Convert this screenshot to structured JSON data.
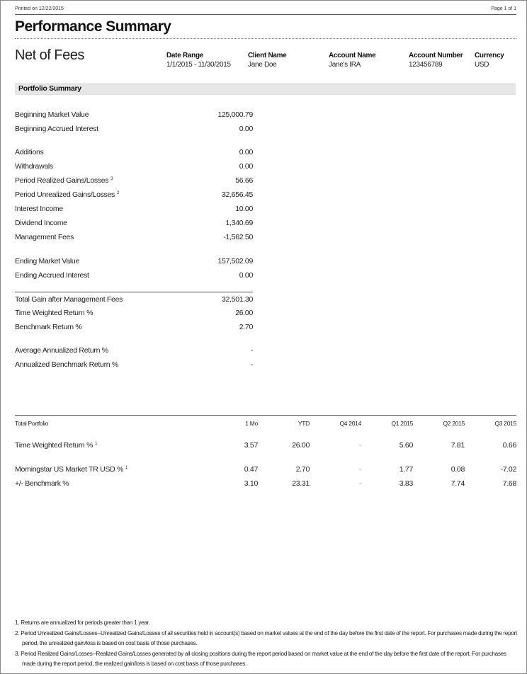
{
  "header": {
    "printed": "Printed on 12/22/2015",
    "page": "Page 1 of 1",
    "title": "Performance Summary",
    "subtitle": "Net of Fees"
  },
  "meta": [
    {
      "label": "Date Range",
      "value": "1/1/2015 - 11/30/2015"
    },
    {
      "label": "Client Name",
      "value": "Jane Doe"
    },
    {
      "label": "Account Name",
      "value": "Jane's IRA"
    },
    {
      "label": "Account Number",
      "value": "123456789"
    },
    {
      "label": "Currency",
      "value": "USD"
    }
  ],
  "section_title": "Portfolio Summary",
  "summary": [
    {
      "label": "Beginning Market Value",
      "value": "125,000.79"
    },
    {
      "label": "Beginning Accrued Interest",
      "value": "0.00"
    },
    {
      "label": "Additions",
      "value": "0.00"
    },
    {
      "label": "Withdrawals",
      "value": "0.00"
    },
    {
      "label": "Period  Realized Gains/Losses",
      "sup": "3",
      "value": "56.66"
    },
    {
      "label": "Period Unrealized Gains/Losses",
      "sup": "2",
      "value": "32,656.45"
    },
    {
      "label": "Interest Income",
      "value": "10.00"
    },
    {
      "label": "Dividend Income",
      "value": "1,340.69"
    },
    {
      "label": "Management Fees",
      "value": "-1,562.50"
    },
    {
      "label": "Ending Market Value",
      "value": "157,502.09"
    },
    {
      "label": "Ending Accrued Interest",
      "value": "0.00"
    },
    {
      "label": "Total Gain after Management Fees",
      "value": "32,501.30"
    },
    {
      "label": "Time Weighted Return %",
      "value": "26.00"
    },
    {
      "label": "Benchmark Return %",
      "value": "2.70"
    },
    {
      "label": "Average Annualized Return %",
      "value": "-"
    },
    {
      "label": "Annualized Benchmark Return %",
      "value": "-"
    }
  ],
  "returns": {
    "headers": [
      "Total Portfolio",
      "1 Mo",
      "YTD",
      "Q4 2014",
      "Q1 2015",
      "Q2 2015",
      "Q3 2015"
    ],
    "rows": [
      {
        "label": "Time Weighted Return %",
        "sup": "1",
        "values": [
          "3.57",
          "26.00",
          "-",
          "5.60",
          "7.81",
          "0.66"
        ]
      },
      {
        "label": "Morningstar US Market TR USD %",
        "sup": "1",
        "values": [
          "0.47",
          "2.70",
          "-",
          "1.77",
          "0.08",
          "-7.02"
        ]
      },
      {
        "label": "+/- Benchmark %",
        "values": [
          "3.10",
          "23.31",
          "-",
          "3.83",
          "7.74",
          "7.68"
        ]
      }
    ]
  },
  "footnotes": [
    "1. Returns are annualized for periods greater than 1 year.",
    "2. Period Unrealized Gains/Losses--Unrealized Gains/Losses of all securities held in account(s) based on market values at the end of the day before the first date of the report. For purchases made during the report period, the unrealized gain/loss is based on cost basis of those purchases.",
    "3. Period Realized Gains/Losses--Realized Gains/Losses generated by all closing positions during the report period based on market value at the end of the day before the first date of the report. For purchases made during the report period, the realized gain/loss is based on cost basis of those purchases."
  ]
}
